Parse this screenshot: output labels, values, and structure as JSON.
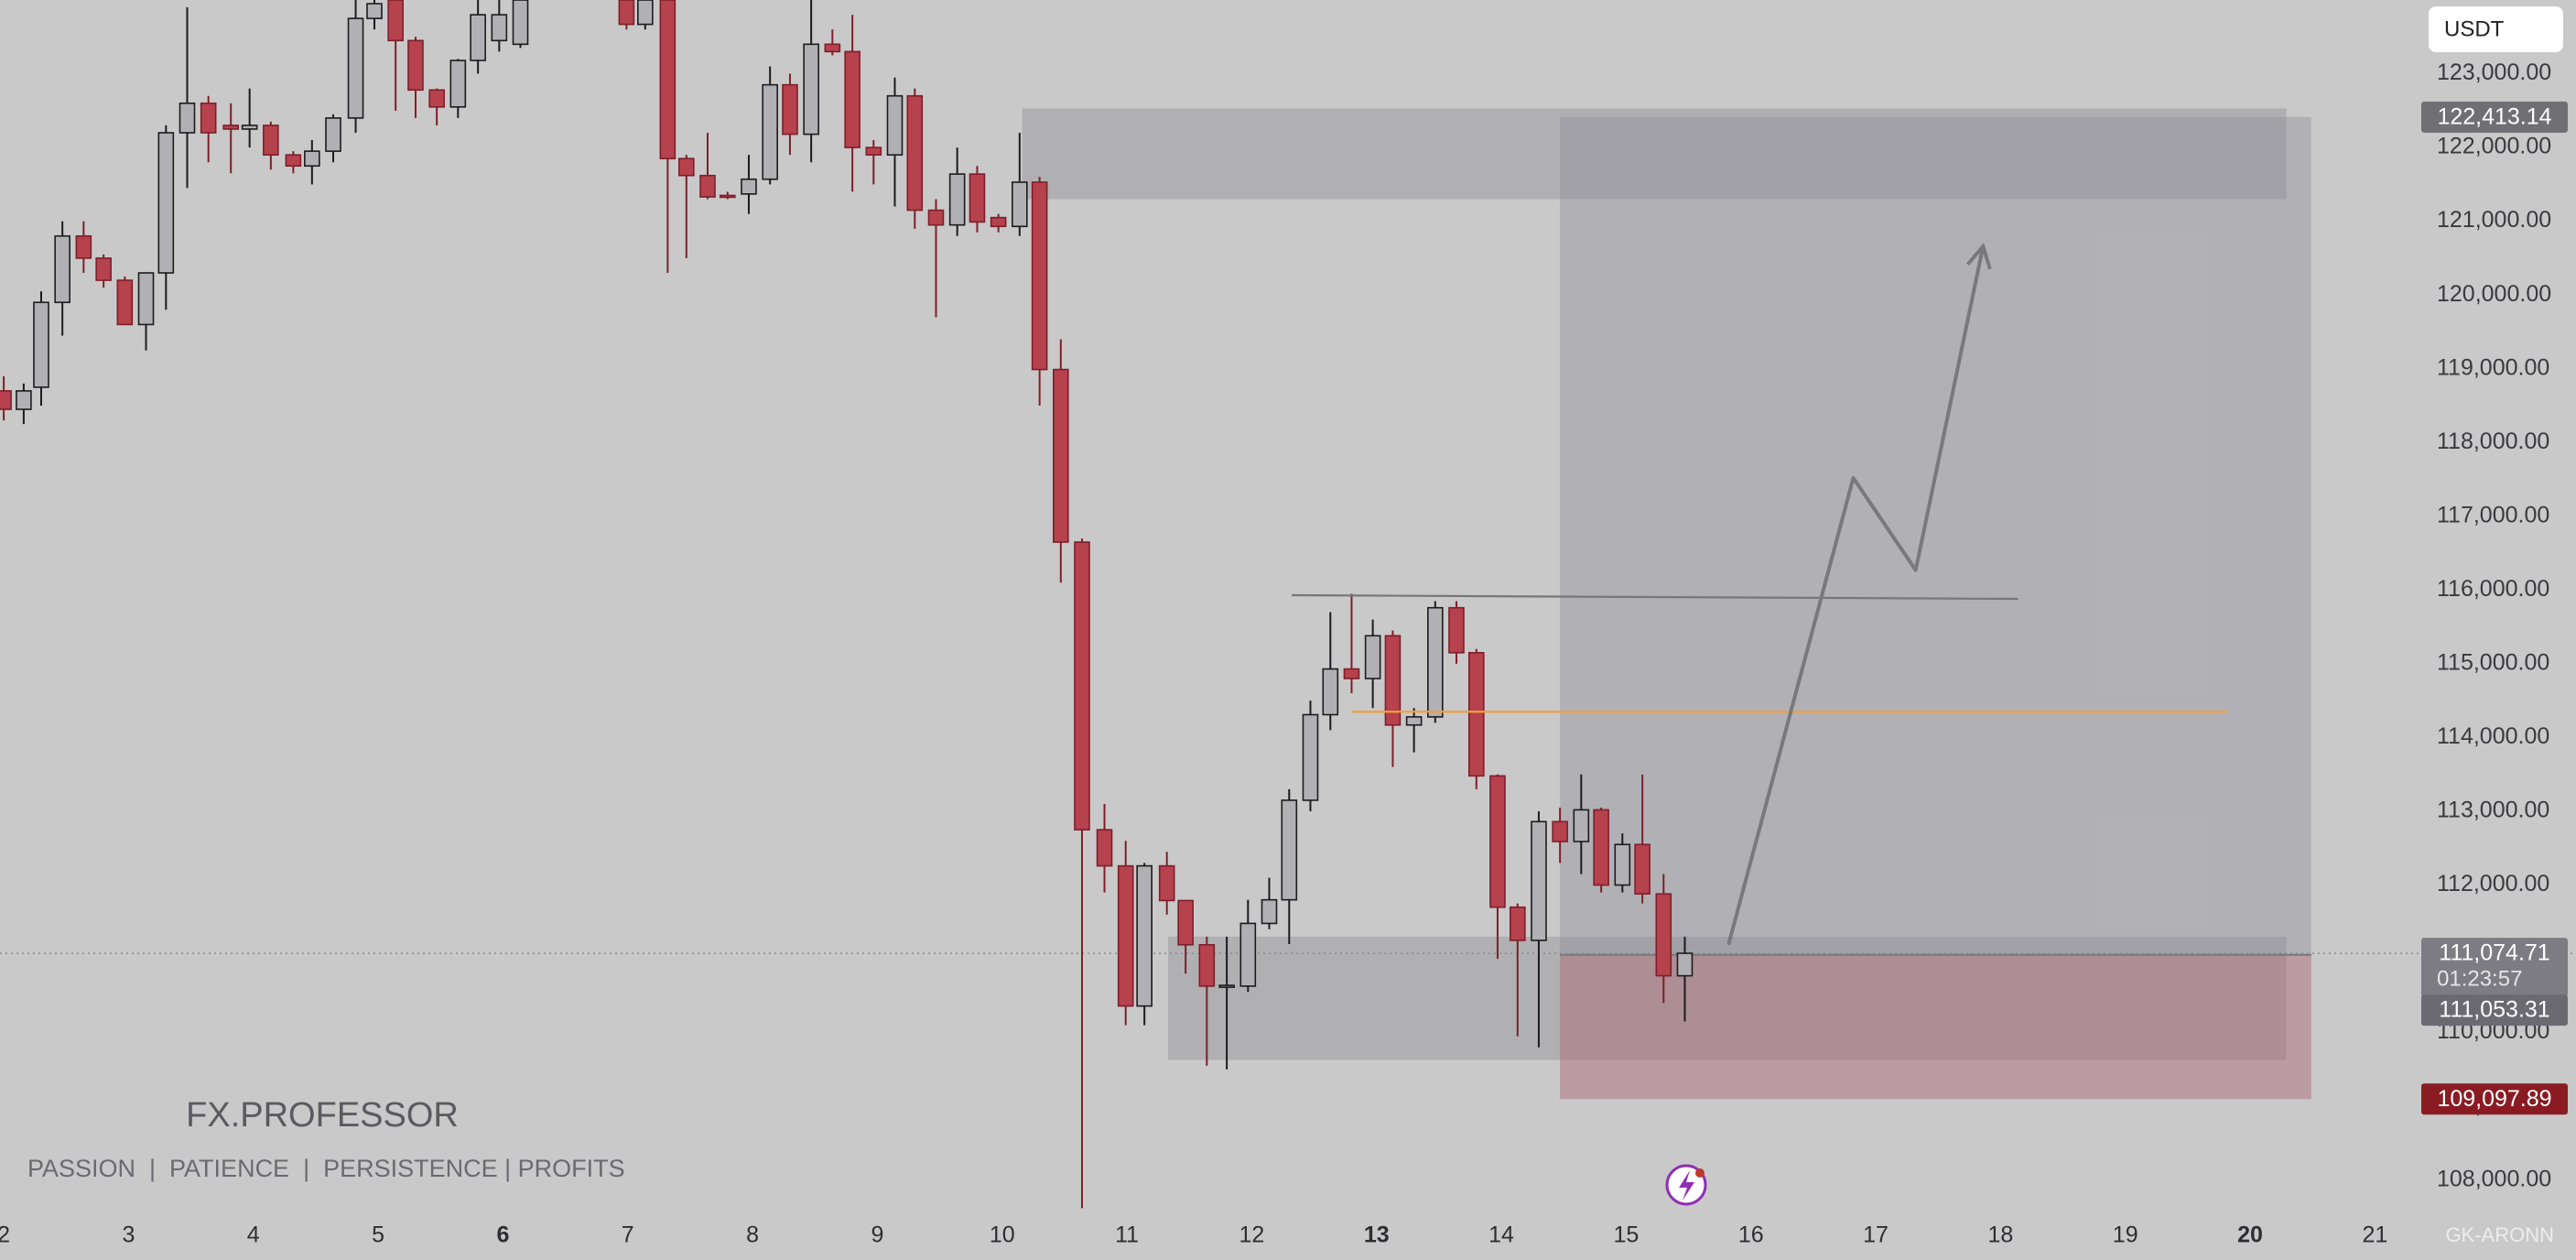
{
  "chart_data": {
    "type": "candlestick",
    "currency": "USDT",
    "brand": "FX.PROFESSOR",
    "tagline": "PASSION  |  PATIENCE  |  PERSISTENCE | PROFITS",
    "watermark": "GK-ARONN",
    "xlim": [
      1.97,
      21.32
    ],
    "xticks": [
      2,
      3,
      4,
      5,
      6,
      7,
      8,
      9,
      10,
      11,
      12,
      13,
      14,
      15,
      16,
      17,
      18,
      19,
      20,
      21
    ],
    "bold_xticks": [
      6,
      13,
      20
    ],
    "ylim": [
      107500,
      124000
    ],
    "yticks": [
      {
        "value": 108000,
        "label": "108,000.00"
      },
      {
        "value": 109000,
        "label": "109,000.00"
      },
      {
        "value": 110000,
        "label": "110,000.00"
      },
      {
        "value": 111000,
        "label": "111,000.00"
      },
      {
        "value": 112000,
        "label": "112,000.00"
      },
      {
        "value": 113000,
        "label": "113,000.00"
      },
      {
        "value": 114000,
        "label": "114,000.00"
      },
      {
        "value": 115000,
        "label": "115,000.00"
      },
      {
        "value": 116000,
        "label": "116,000.00"
      },
      {
        "value": 117000,
        "label": "117,000.00"
      },
      {
        "value": 118000,
        "label": "118,000.00"
      },
      {
        "value": 119000,
        "label": "119,000.00"
      },
      {
        "value": 120000,
        "label": "120,000.00"
      },
      {
        "value": 121000,
        "label": "121,000.00"
      },
      {
        "value": 122000,
        "label": "122,000.00"
      },
      {
        "value": 123000,
        "label": "123,000.00"
      }
    ],
    "up_color": "#b1b1b5",
    "down_color": "#b6424e",
    "candles": {
      "x": [
        2.0,
        2.16,
        2.3,
        2.47,
        2.64,
        2.8,
        2.97,
        3.14,
        3.3,
        3.47,
        3.64,
        3.82,
        3.97,
        4.14,
        4.32,
        4.47,
        4.64,
        4.82,
        4.97,
        5.14,
        5.3,
        5.47,
        5.64,
        5.8,
        5.97,
        6.14,
        6.99,
        7.14,
        7.32,
        7.47,
        7.64,
        7.8,
        7.97,
        8.14,
        8.3,
        8.47,
        8.64,
        8.8,
        8.97,
        9.14,
        9.3,
        9.47,
        9.64,
        9.8,
        9.97,
        10.14,
        10.3,
        10.47,
        10.64,
        10.82,
        10.99,
        11.14,
        11.32,
        11.47,
        11.64,
        11.8,
        11.97,
        12.14,
        12.3,
        12.47,
        12.63,
        12.8,
        12.97,
        13.13,
        13.3,
        13.47,
        13.64,
        13.8,
        13.97,
        14.13,
        14.3,
        14.47,
        14.64,
        14.8,
        14.97,
        15.13,
        15.3,
        15.47
      ],
      "open": [
        118700,
        118450,
        118750,
        119900,
        120800,
        120500,
        120200,
        119600,
        120300,
        122200,
        122600,
        122300,
        122250,
        122300,
        121900,
        121750,
        121950,
        122400,
        123750,
        124000,
        123450,
        122780,
        122550,
        123180,
        123450,
        123400,
        124000,
        123670,
        124000,
        121850,
        121620,
        121350,
        121370,
        121570,
        122850,
        122180,
        123400,
        123300,
        122000,
        121900,
        122700,
        121150,
        120950,
        121640,
        121050,
        120930,
        121530,
        118990,
        116650,
        112750,
        112260,
        110360,
        112260,
        111790,
        111190,
        110630,
        110630,
        111480,
        111800,
        113150,
        114310,
        114930,
        114800,
        115380,
        114170,
        114280,
        115760,
        115150,
        113480,
        111700,
        111250,
        112860,
        112590,
        113020,
        112000,
        112550,
        111880,
        110770
      ],
      "high": [
        118900,
        118800,
        120050,
        121000,
        121000,
        120550,
        120250,
        120300,
        122300,
        123900,
        122700,
        122600,
        122800,
        122350,
        121950,
        122100,
        122450,
        124000,
        124000,
        124000,
        123500,
        122800,
        123200,
        124000,
        124000,
        124000,
        124000,
        124000,
        124000,
        121900,
        122200,
        121400,
        121900,
        123100,
        123000,
        124000,
        123600,
        123800,
        122100,
        122950,
        122800,
        121300,
        122000,
        121750,
        121100,
        122200,
        121600,
        119400,
        116700,
        113100,
        112600,
        112300,
        112450,
        111800,
        111300,
        111300,
        111800,
        112100,
        113300,
        114500,
        115700,
        115950,
        115600,
        115450,
        114400,
        115850,
        115850,
        115200,
        113500,
        111750,
        113000,
        113050,
        113500,
        113050,
        112700,
        113500,
        112150,
        111300
      ],
      "low": [
        118300,
        118250,
        118500,
        119450,
        120300,
        120100,
        119600,
        119250,
        119800,
        121450,
        121800,
        121650,
        122000,
        121700,
        121650,
        121500,
        121800,
        122200,
        123600,
        122500,
        122400,
        122300,
        122400,
        123000,
        123300,
        123350,
        123600,
        123600,
        120300,
        120500,
        121300,
        121300,
        121100,
        121500,
        121900,
        121800,
        123250,
        121400,
        121500,
        121200,
        120900,
        119700,
        120800,
        120850,
        120850,
        120800,
        118500,
        116100,
        107620,
        111900,
        110100,
        110100,
        111600,
        110800,
        109550,
        109500,
        110550,
        111400,
        111200,
        113000,
        114100,
        114600,
        114400,
        113600,
        113800,
        114200,
        115000,
        113300,
        111000,
        109950,
        109800,
        112300,
        112150,
        111900,
        111900,
        111750,
        110400,
        110150
      ],
      "close": [
        118450,
        118700,
        119900,
        120800,
        120500,
        120200,
        119600,
        120300,
        122200,
        122600,
        122200,
        122250,
        122300,
        121900,
        121750,
        121950,
        122400,
        123750,
        123950,
        123450,
        122780,
        122550,
        123180,
        123800,
        123800,
        124000,
        123670,
        124000,
        121850,
        121620,
        121330,
        121330,
        121570,
        122850,
        122180,
        123400,
        123300,
        122000,
        121900,
        122700,
        121150,
        120950,
        121640,
        120990,
        120930,
        121530,
        118990,
        116650,
        112750,
        112260,
        110360,
        112260,
        111790,
        111190,
        110630,
        110640,
        111480,
        111800,
        113150,
        114310,
        114930,
        114800,
        115380,
        114170,
        114280,
        115760,
        115150,
        113480,
        111700,
        111250,
        112860,
        112590,
        113020,
        112000,
        112550,
        111880,
        110770,
        111075
      ]
    },
    "zones": [
      {
        "start": 10.16,
        "end": 20.29,
        "top": 122530,
        "bottom": 121300
      },
      {
        "start": 11.33,
        "end": 20.29,
        "top": 111300,
        "bottom": 109630
      }
    ],
    "lines": [
      {
        "start": 12.32,
        "end": 18.14,
        "from": 115930,
        "to": 115880,
        "color": "#76767b"
      },
      {
        "start": 12.8,
        "end": 19.82,
        "from": 114350,
        "to": 114350,
        "color": "#f0a03a"
      }
    ],
    "arrow": {
      "x": [
        15.82,
        16.82,
        17.32,
        17.86
      ],
      "y": [
        111190,
        117520,
        116270,
        120660
      ],
      "color": "#78787d"
    },
    "position": {
      "start": 14.47,
      "end": 20.49,
      "target": {
        "value": 122413.14,
        "label": "122,413.14"
      },
      "entry": {
        "value": 111053.31,
        "label": "111,053.31"
      },
      "stop": {
        "value": 109097.89,
        "label": "109,097.89"
      }
    },
    "last_price": {
      "value": 111074.71,
      "label": "111,074.71",
      "countdown": "01:23:57"
    }
  }
}
